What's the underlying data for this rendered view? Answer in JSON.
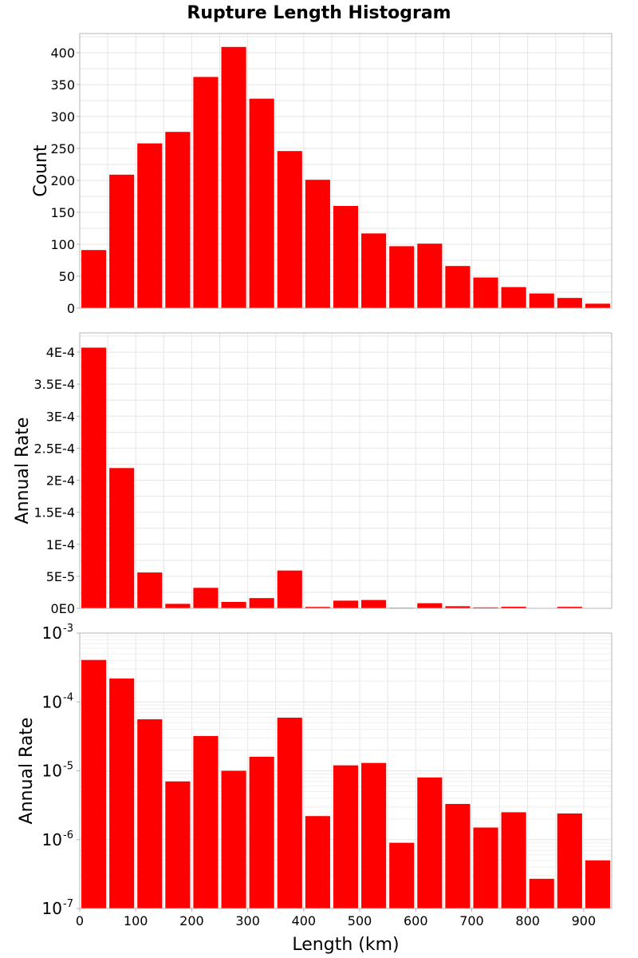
{
  "page": {
    "title": "Rupture Length Histogram"
  },
  "colors": {
    "bar": "#ff0000",
    "frame": "#b4b4b4",
    "grid": "#e6e6e6"
  },
  "chart_data": [
    {
      "type": "bar",
      "title": "Rupture Length Histogram",
      "xlabel": "",
      "ylabel": "Count",
      "bin_width": 50,
      "x": [
        25,
        75,
        125,
        175,
        225,
        275,
        325,
        375,
        425,
        475,
        525,
        575,
        625,
        675,
        725,
        775,
        825,
        875,
        925
      ],
      "values": [
        91,
        209,
        258,
        276,
        362,
        409,
        328,
        246,
        201,
        160,
        117,
        97,
        101,
        66,
        48,
        33,
        23,
        16,
        7
      ],
      "xlim": [
        0,
        950
      ],
      "ylim": [
        0,
        430
      ],
      "yticks": [
        0,
        50,
        100,
        150,
        200,
        250,
        300,
        350,
        400
      ],
      "ytick_labels": [
        "0",
        "50",
        "100",
        "150",
        "200",
        "250",
        "300",
        "350",
        "400"
      ],
      "yscale": "linear",
      "grid": true,
      "legend": "none"
    },
    {
      "type": "bar",
      "xlabel": "",
      "ylabel": "Annual Rate",
      "bin_width": 50,
      "x": [
        25,
        75,
        125,
        175,
        225,
        275,
        325,
        375,
        425,
        475,
        525,
        575,
        625,
        675,
        725,
        775,
        825,
        875,
        925
      ],
      "values": [
        0.000407,
        0.000219,
        5.6e-05,
        7e-06,
        3.2e-05,
        1e-05,
        1.6e-05,
        5.9e-05,
        2.2e-06,
        1.2e-05,
        1.3e-05,
        9e-07,
        8e-06,
        3.3e-06,
        1.5e-06,
        2.5e-06,
        2.7e-07,
        2.4e-06,
        5e-07
      ],
      "xlim": [
        0,
        950
      ],
      "ylim": [
        0,
        0.00043
      ],
      "yticks": [
        0,
        5e-05,
        0.0001,
        0.00015,
        0.0002,
        0.00025,
        0.0003,
        0.00035,
        0.0004
      ],
      "ytick_labels": [
        "0E0",
        "5E-5",
        "1E-4",
        "1.5E-4",
        "2E-4",
        "2.5E-4",
        "3E-4",
        "3.5E-4",
        "4E-4"
      ],
      "yscale": "linear",
      "grid": true,
      "legend": "none"
    },
    {
      "type": "bar",
      "xlabel": "Length (km)",
      "ylabel": "Annual Rate",
      "bin_width": 50,
      "x": [
        25,
        75,
        125,
        175,
        225,
        275,
        325,
        375,
        425,
        475,
        525,
        575,
        625,
        675,
        725,
        775,
        825,
        875,
        925
      ],
      "values": [
        0.000407,
        0.000219,
        5.6e-05,
        7e-06,
        3.2e-05,
        1e-05,
        1.6e-05,
        5.9e-05,
        2.2e-06,
        1.2e-05,
        1.3e-05,
        9e-07,
        8e-06,
        3.3e-06,
        1.5e-06,
        2.5e-06,
        2.7e-07,
        2.4e-06,
        5e-07
      ],
      "xlim": [
        0,
        950
      ],
      "ylim": [
        1e-07,
        0.001
      ],
      "xticks": [
        0,
        100,
        200,
        300,
        400,
        500,
        600,
        700,
        800,
        900
      ],
      "xtick_labels": [
        "0",
        "100",
        "200",
        "300",
        "400",
        "500",
        "600",
        "700",
        "800",
        "900"
      ],
      "yticks": [
        1e-07,
        1e-06,
        1e-05,
        0.0001,
        0.001
      ],
      "ytick_labels": [
        {
          "base": "10",
          "exp": "-7"
        },
        {
          "base": "10",
          "exp": "-6"
        },
        {
          "base": "10",
          "exp": "-5"
        },
        {
          "base": "10",
          "exp": "-4"
        },
        {
          "base": "10",
          "exp": "-3"
        }
      ],
      "yscale": "log",
      "grid": true,
      "legend": "none"
    }
  ]
}
